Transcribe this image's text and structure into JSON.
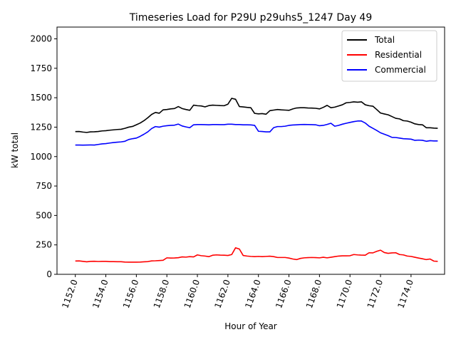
{
  "chart_data": {
    "type": "line",
    "title": "Timeseries Load for P29U p29uhs5_1247  Day 49",
    "xlabel": "Hour of Year",
    "ylabel": "kW total",
    "xlim": [
      1150.8,
      1176.2
    ],
    "ylim": [
      0,
      2100
    ],
    "xticks": [
      1152,
      1154,
      1156,
      1158,
      1160,
      1162,
      1164,
      1166,
      1168,
      1170,
      1172,
      1174
    ],
    "xtick_labels": [
      "1152.0",
      "1154.0",
      "1156.0",
      "1158.0",
      "1160.0",
      "1162.0",
      "1164.0",
      "1166.0",
      "1168.0",
      "1170.0",
      "1172.0",
      "1174.0"
    ],
    "yticks": [
      0,
      250,
      500,
      750,
      1000,
      1250,
      1500,
      1750,
      2000
    ],
    "ytick_labels": [
      "0",
      "250",
      "500",
      "750",
      "1000",
      "1250",
      "1500",
      "1750",
      "2000"
    ],
    "legend_position": "top-right",
    "x": [
      1152.0,
      1152.25,
      1152.5,
      1152.75,
      1153.0,
      1153.25,
      1153.5,
      1153.75,
      1154.0,
      1154.25,
      1154.5,
      1154.75,
      1155.0,
      1155.25,
      1155.5,
      1155.75,
      1156.0,
      1156.25,
      1156.5,
      1156.75,
      1157.0,
      1157.25,
      1157.5,
      1157.75,
      1158.0,
      1158.25,
      1158.5,
      1158.75,
      1159.0,
      1159.25,
      1159.5,
      1159.75,
      1160.0,
      1160.25,
      1160.5,
      1160.75,
      1161.0,
      1161.25,
      1161.5,
      1161.75,
      1162.0,
      1162.25,
      1162.5,
      1162.75,
      1163.0,
      1163.25,
      1163.5,
      1163.75,
      1164.0,
      1164.25,
      1164.5,
      1164.75,
      1165.0,
      1165.25,
      1165.5,
      1165.75,
      1166.0,
      1166.25,
      1166.5,
      1166.75,
      1167.0,
      1167.25,
      1167.5,
      1167.75,
      1168.0,
      1168.25,
      1168.5,
      1168.75,
      1169.0,
      1169.25,
      1169.5,
      1169.75,
      1170.0,
      1170.25,
      1170.5,
      1170.75,
      1171.0,
      1171.25,
      1171.5,
      1171.75,
      1172.0,
      1172.25,
      1172.5,
      1172.75,
      1173.0,
      1173.25,
      1173.5,
      1173.75,
      1174.0,
      1174.25,
      1174.5,
      1174.75,
      1175.0,
      1175.25,
      1175.5,
      1175.75
    ],
    "series": [
      {
        "name": "Total",
        "color": "#000000",
        "values": [
          1212,
          1213,
          1208,
          1205,
          1210,
          1211,
          1213,
          1218,
          1220,
          1224,
          1227,
          1230,
          1232,
          1240,
          1250,
          1256,
          1270,
          1285,
          1305,
          1330,
          1358,
          1375,
          1368,
          1397,
          1400,
          1405,
          1408,
          1425,
          1408,
          1400,
          1393,
          1437,
          1432,
          1430,
          1422,
          1433,
          1437,
          1435,
          1433,
          1432,
          1445,
          1495,
          1487,
          1425,
          1422,
          1418,
          1415,
          1367,
          1363,
          1365,
          1360,
          1390,
          1395,
          1400,
          1397,
          1395,
          1393,
          1405,
          1413,
          1415,
          1415,
          1413,
          1412,
          1410,
          1405,
          1418,
          1435,
          1415,
          1420,
          1430,
          1440,
          1457,
          1460,
          1465,
          1462,
          1465,
          1440,
          1432,
          1428,
          1400,
          1370,
          1362,
          1355,
          1340,
          1325,
          1320,
          1305,
          1302,
          1292,
          1278,
          1272,
          1270,
          1245,
          1245,
          1242,
          1240
        ]
      },
      {
        "name": "Residential",
        "color": "#ff0000",
        "values": [
          113,
          114,
          110,
          106,
          110,
          111,
          109,
          110,
          110,
          108,
          108,
          107,
          107,
          104,
          103,
          103,
          103,
          104,
          106,
          108,
          114,
          115,
          117,
          119,
          140,
          138,
          139,
          141,
          148,
          146,
          150,
          148,
          165,
          158,
          155,
          150,
          162,
          165,
          163,
          162,
          160,
          168,
          225,
          215,
          160,
          155,
          152,
          150,
          152,
          150,
          152,
          154,
          150,
          143,
          143,
          143,
          138,
          130,
          125,
          135,
          140,
          142,
          143,
          142,
          140,
          145,
          140,
          145,
          150,
          155,
          157,
          157,
          158,
          168,
          165,
          163,
          162,
          183,
          182,
          195,
          205,
          185,
          178,
          182,
          183,
          168,
          165,
          155,
          152,
          145,
          138,
          132,
          125,
          130,
          112,
          110
        ]
      },
      {
        "name": "Commercial",
        "color": "#0000ff",
        "values": [
          1098,
          1098,
          1097,
          1098,
          1099,
          1098,
          1103,
          1108,
          1110,
          1115,
          1119,
          1122,
          1125,
          1130,
          1145,
          1152,
          1157,
          1172,
          1190,
          1210,
          1238,
          1255,
          1250,
          1258,
          1262,
          1265,
          1267,
          1276,
          1260,
          1252,
          1245,
          1270,
          1272,
          1272,
          1271,
          1270,
          1272,
          1272,
          1271,
          1271,
          1275,
          1275,
          1272,
          1272,
          1270,
          1270,
          1269,
          1265,
          1215,
          1213,
          1210,
          1210,
          1246,
          1255,
          1255,
          1258,
          1265,
          1268,
          1270,
          1272,
          1273,
          1272,
          1271,
          1270,
          1262,
          1265,
          1273,
          1283,
          1258,
          1265,
          1275,
          1283,
          1290,
          1297,
          1302,
          1302,
          1285,
          1258,
          1240,
          1222,
          1202,
          1190,
          1178,
          1163,
          1162,
          1157,
          1152,
          1150,
          1148,
          1138,
          1140,
          1138,
          1130,
          1135,
          1133,
          1133
        ]
      }
    ]
  }
}
